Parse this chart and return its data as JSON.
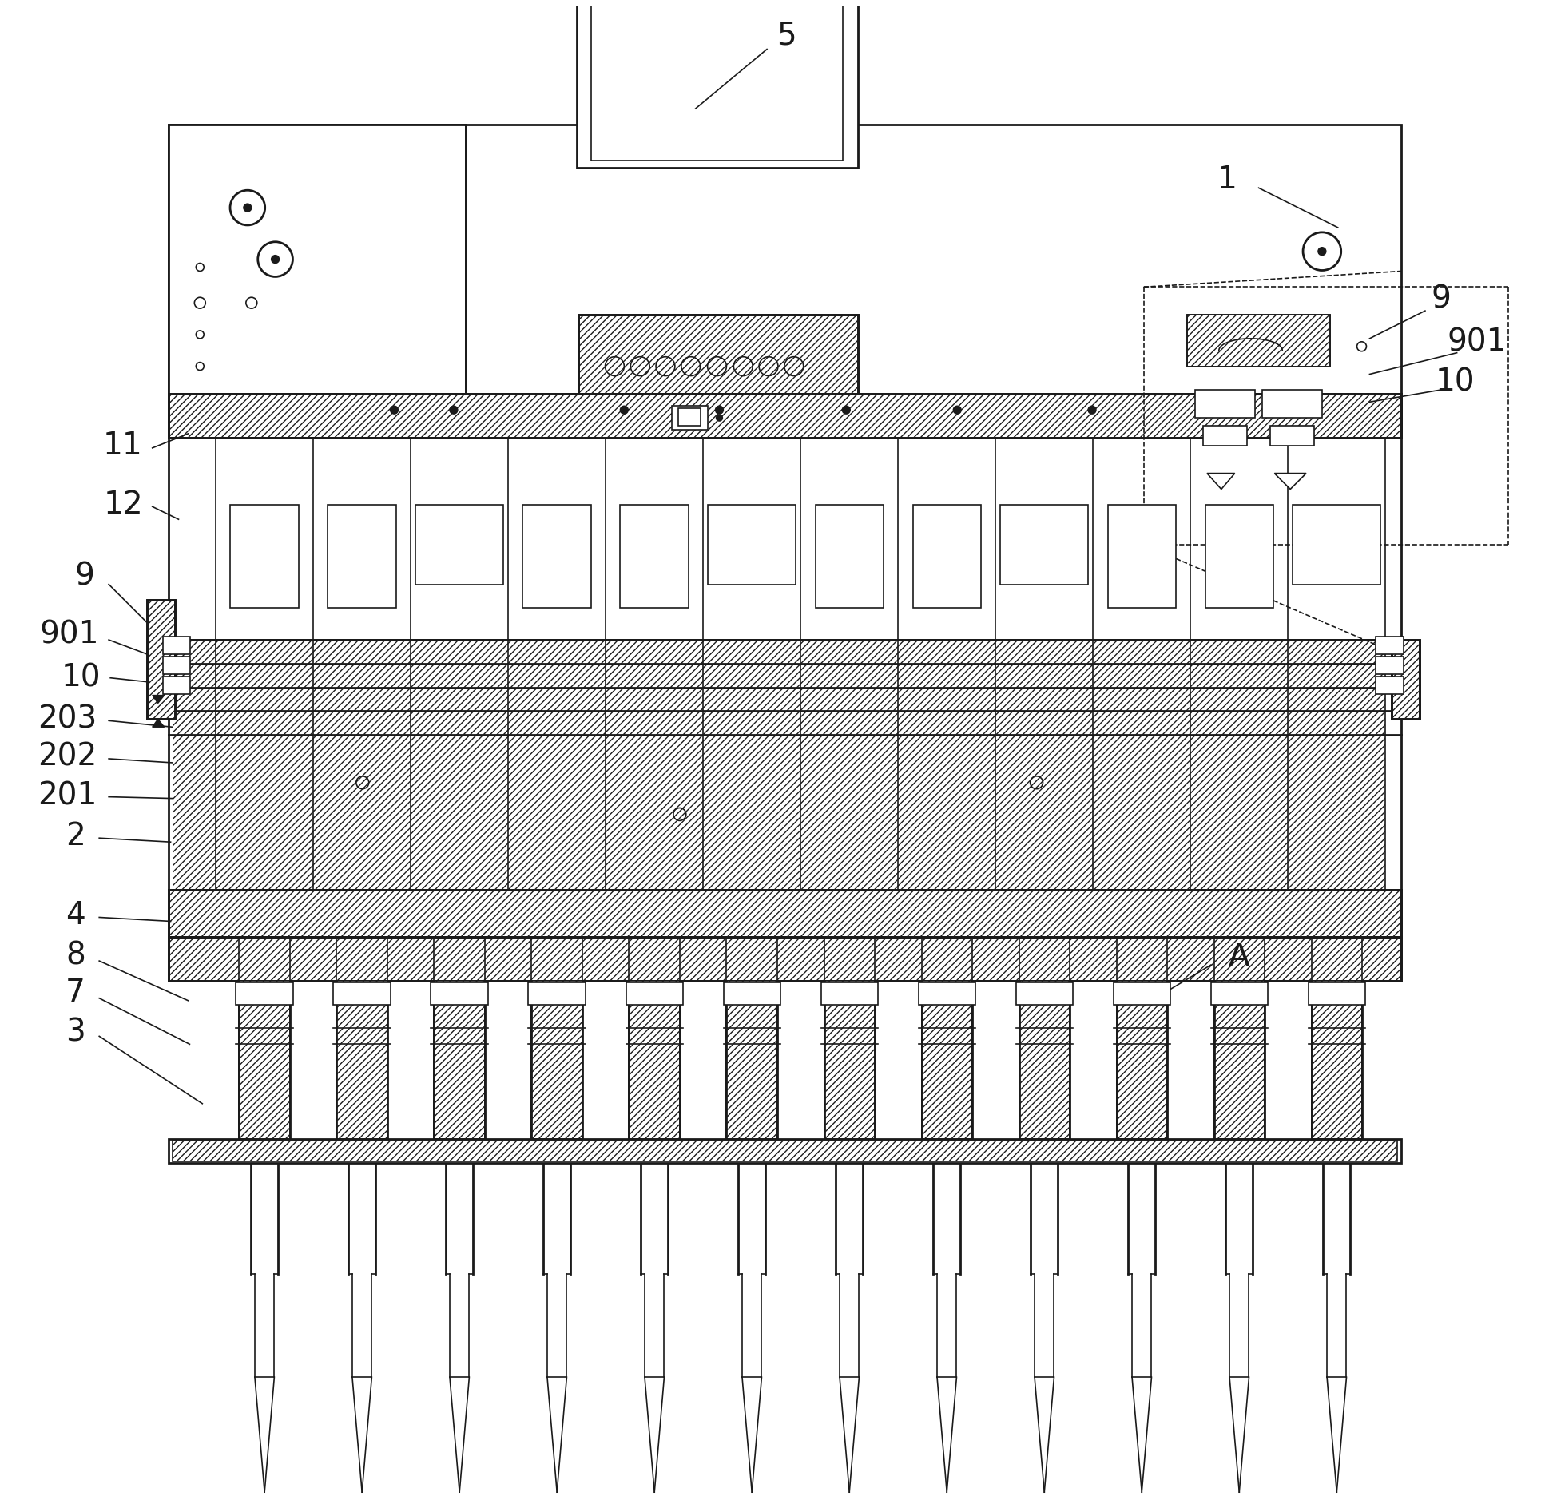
{
  "bg_color": "#ffffff",
  "line_color": "#1a1a1a",
  "fig_width": 19.29,
  "fig_height": 18.88,
  "dpi": 100
}
